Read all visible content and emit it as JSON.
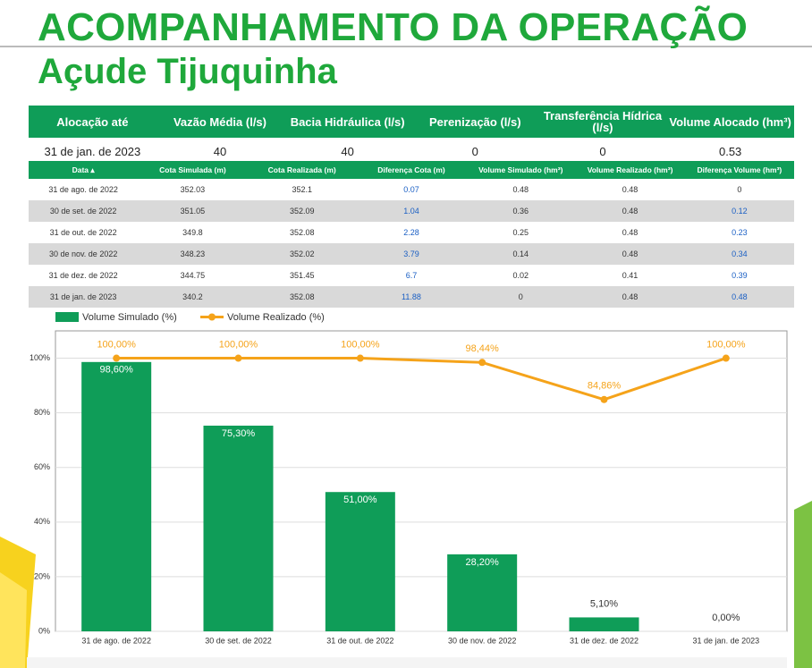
{
  "header": {
    "title": "ACOMPANHAMENTO DA OPERAÇÃO",
    "subtitle": "Açude Tijuquinha"
  },
  "summary": {
    "columns": [
      "Alocação até",
      "Vazão Média (l/s)",
      "Bacia Hidráulica (l/s)",
      "Perenização (l/s)",
      "Transferência Hídrica (l/s)",
      "Volume Alocado (hm³)"
    ],
    "row": [
      "31 de jan. de 2023",
      "40",
      "40",
      "0",
      "0",
      "0.53"
    ]
  },
  "table": {
    "columns": [
      "Data",
      "Cota Simulada (m)",
      "Cota Realizada (m)",
      "Diferença Cota (m)",
      "Volume Simulado (hm³)",
      "Volume Realizado (hm³)",
      "Diferença Volume (hm³)"
    ],
    "rows": [
      [
        "31 de ago. de 2022",
        "352.03",
        "352.1",
        "0.07",
        "0.48",
        "0.48",
        "0"
      ],
      [
        "30 de set. de 2022",
        "351.05",
        "352.09",
        "1.04",
        "0.36",
        "0.48",
        "0.12"
      ],
      [
        "31 de out. de 2022",
        "349.8",
        "352.08",
        "2.28",
        "0.25",
        "0.48",
        "0.23"
      ],
      [
        "30 de nov. de 2022",
        "348.23",
        "352.02",
        "3.79",
        "0.14",
        "0.48",
        "0.34"
      ],
      [
        "31 de dez. de 2022",
        "344.75",
        "351.45",
        "6.7",
        "0.02",
        "0.41",
        "0.39"
      ],
      [
        "31 de jan. de 2023",
        "340.2",
        "352.08",
        "11.88",
        "0",
        "0.48",
        "0.48"
      ]
    ]
  },
  "chart_data": {
    "type": "bar-line",
    "categories": [
      "31 de ago. de 2022",
      "30 de set. de 2022",
      "31 de out. de 2022",
      "30 de nov. de 2022",
      "31 de dez. de 2022",
      "31 de jan. de 2023"
    ],
    "series": [
      {
        "name": "Volume Simulado (%)",
        "type": "bar",
        "color": "#0f9d58",
        "values": [
          98.6,
          75.3,
          51,
          28.2,
          5.1,
          0
        ],
        "value_labels": [
          "98,60%",
          "75,30%",
          "51,00%",
          "28,20%",
          "5,10%",
          "0,00%"
        ]
      },
      {
        "name": "Volume Realizado (%)",
        "type": "line",
        "color": "#f5a31a",
        "values": [
          100,
          100,
          100,
          98.44,
          84.86,
          100
        ],
        "value_labels": [
          "100,00%",
          "100,00%",
          "100,00%",
          "98,44%",
          "84,86%",
          "100,00%"
        ]
      }
    ],
    "ylim": [
      0,
      110
    ],
    "yticks": [
      {
        "value": 0,
        "label": "0%"
      },
      {
        "value": 20,
        "label": "20%"
      },
      {
        "value": 40,
        "label": "40%"
      },
      {
        "value": 60,
        "label": "60%"
      },
      {
        "value": 80,
        "label": "80%"
      },
      {
        "value": 100,
        "label": "100%"
      }
    ],
    "grid": true
  }
}
